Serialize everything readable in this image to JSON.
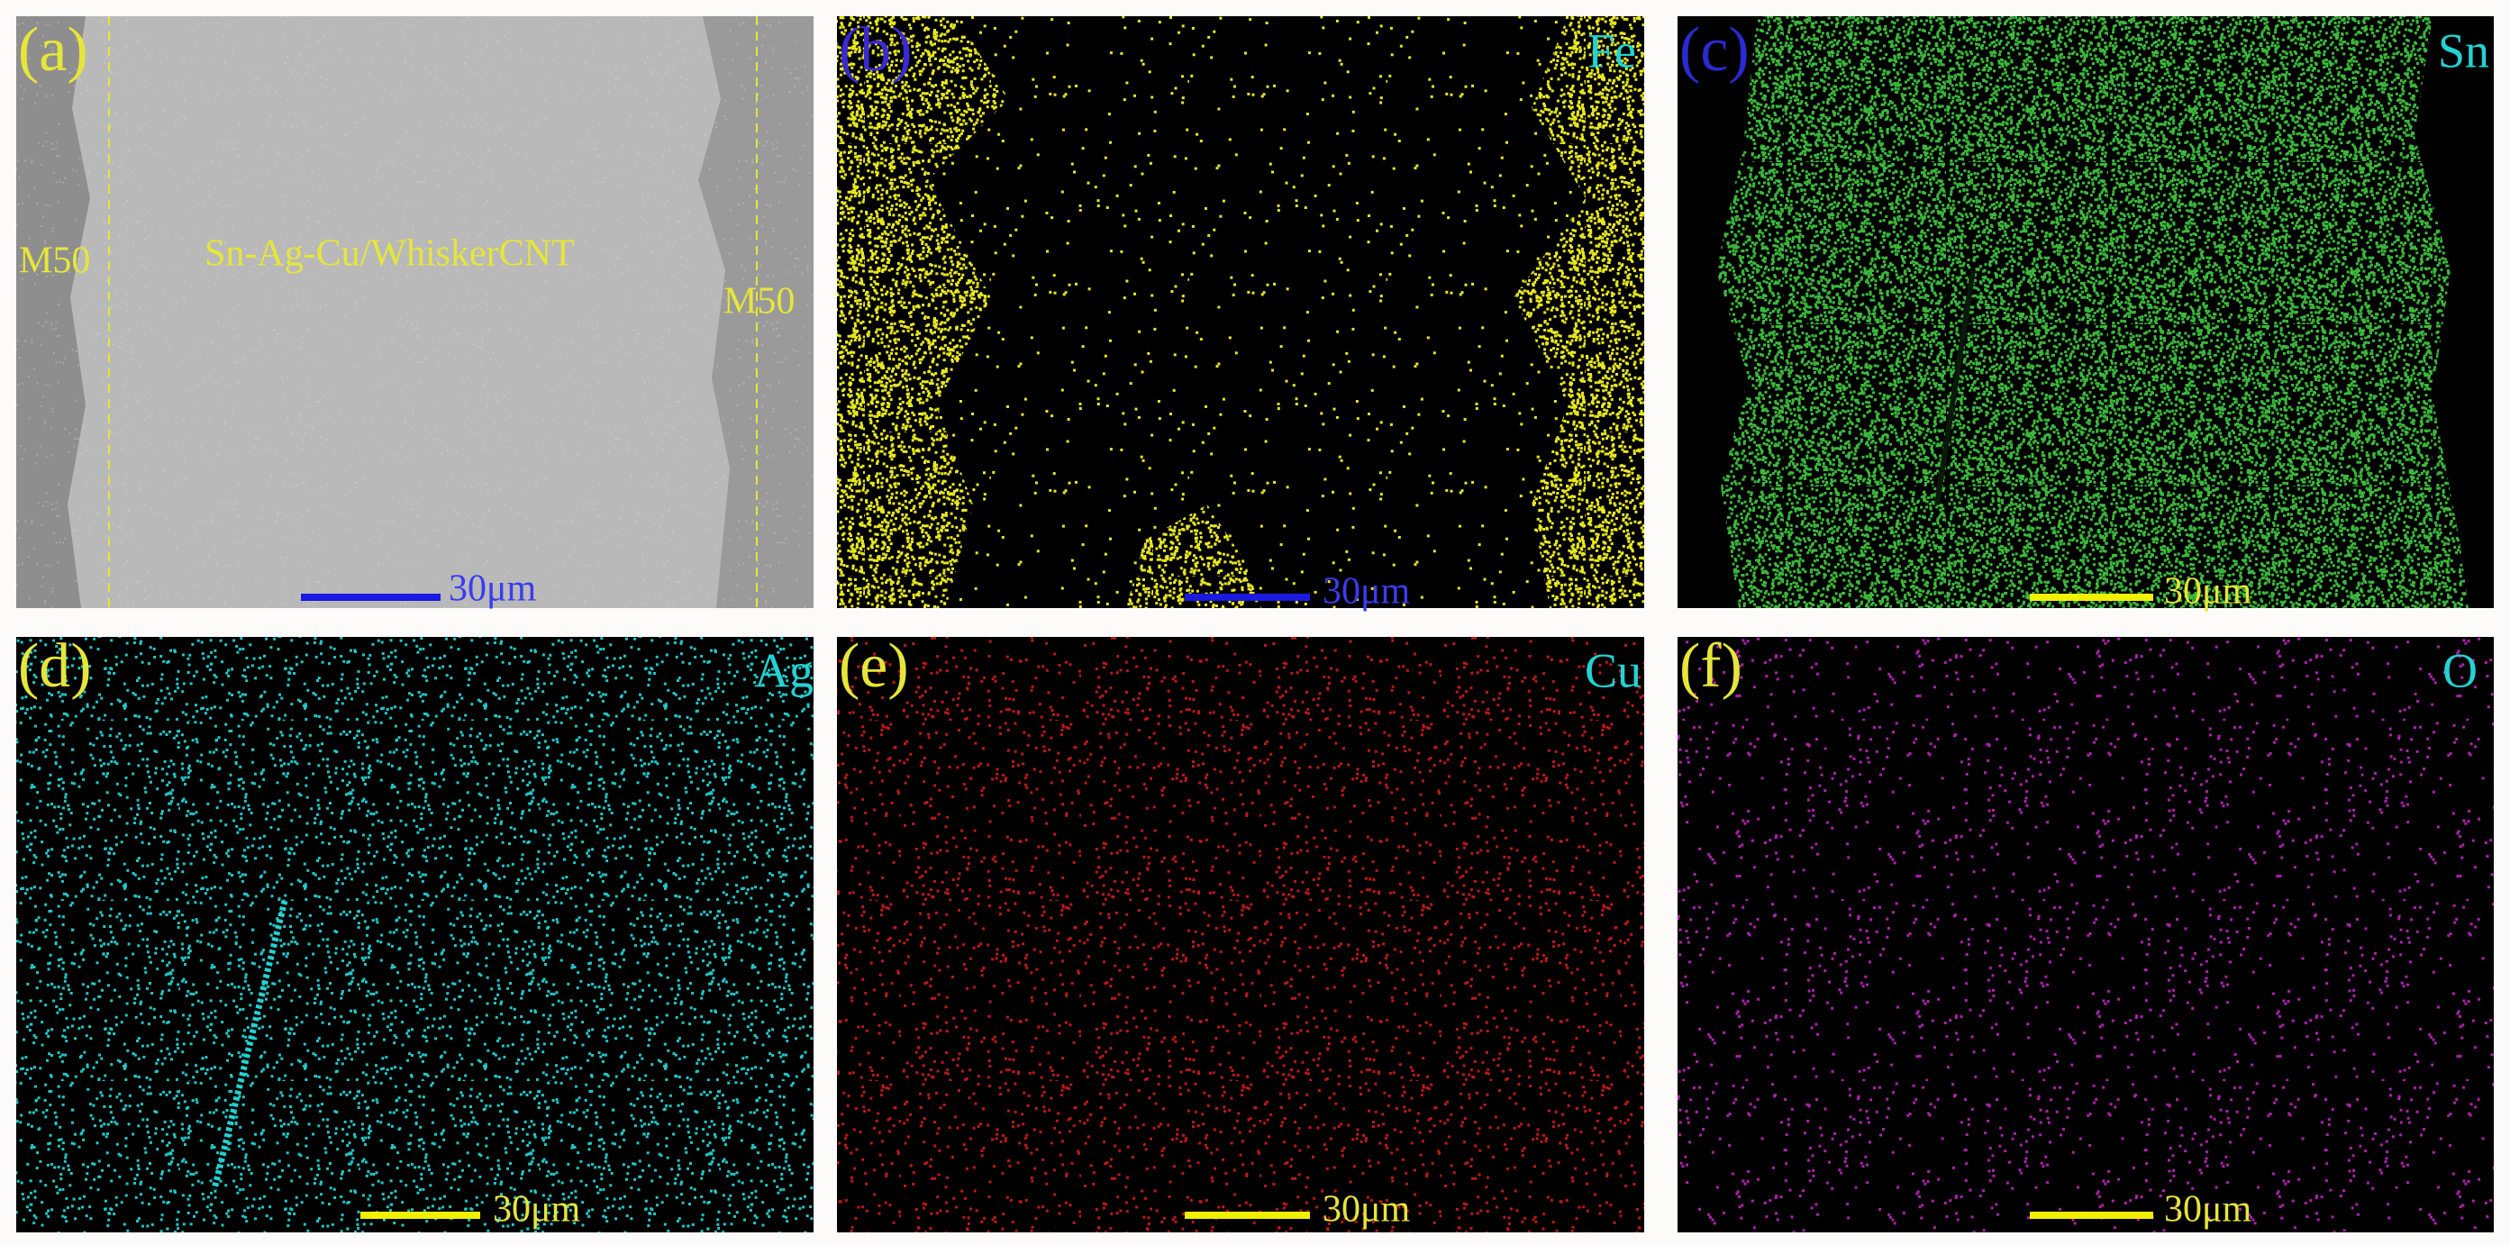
{
  "panels": [
    {
      "label": "(a)",
      "annotations": [
        "M50",
        "Sn-Ag-Cu/WhiskerCNT",
        "M50"
      ],
      "scale_bar": "30μm"
    },
    {
      "label": "(b)",
      "element": "Fe",
      "scale_bar": "30μm"
    },
    {
      "label": "(c)",
      "element": "Sn",
      "scale_bar": "30μm"
    },
    {
      "label": "(d)",
      "element": "Ag",
      "scale_bar": "30μm"
    },
    {
      "label": "(e)",
      "element": "Cu",
      "scale_bar": "30μm"
    },
    {
      "label": "(f)",
      "element": "O",
      "scale_bar": "30μm"
    }
  ]
}
